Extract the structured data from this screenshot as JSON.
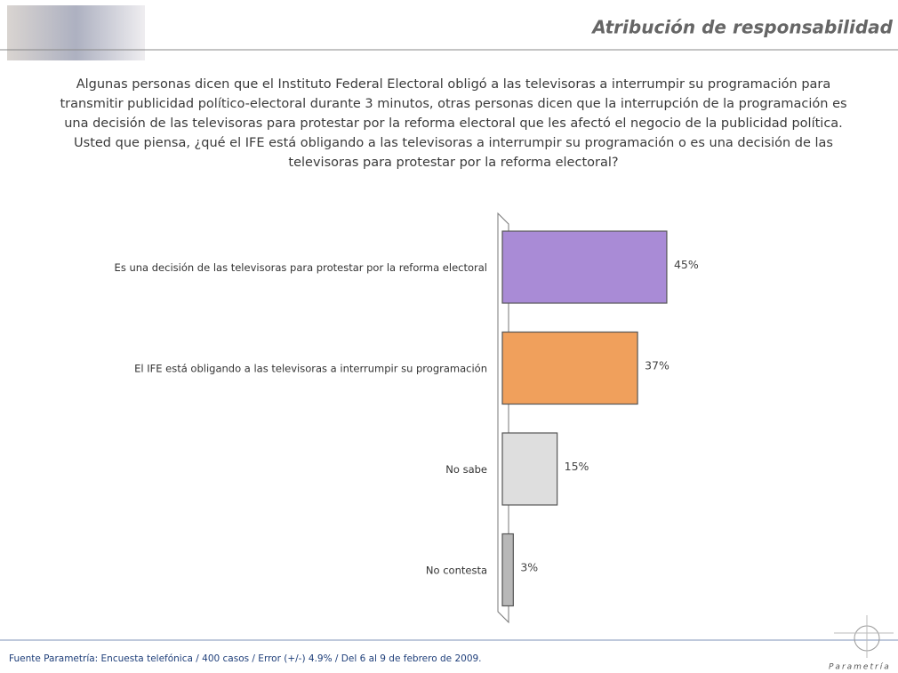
{
  "header": {
    "title": "Atribución de responsabilidad"
  },
  "chart_data": {
    "type": "bar",
    "orientation": "horizontal",
    "title": "Algunas personas dicen que el Instituto Federal Electoral obligó a las televisoras a interrumpir su programación para transmitir publicidad político-electoral durante 3 minutos, otras personas dicen que la interrupción de la programación es una decisión de las televisoras para protestar por la reforma electoral que les afectó el negocio de la publicidad política. Usted que piensa, ¿qué el IFE está obligando a las televisoras a interrumpir su programación o es una decisión de las televisoras para protestar por la reforma electoral?",
    "categories": [
      "Es una decisión de las televisoras para protestar por la reforma electoral",
      "El IFE está obligando a las televisoras a interrumpir su programación",
      "No sabe",
      "No contesta"
    ],
    "values": [
      45,
      37,
      15,
      3
    ],
    "value_labels": [
      "45%",
      "37%",
      "15%",
      "3%"
    ],
    "colors": [
      "#a98bd6",
      "#f0a05c",
      "#dedede",
      "#b8b8b8"
    ]
  },
  "footer": {
    "source": "Fuente Parametría: Encuesta telefónica / 400 casos / Error (+/-) 4.9% / Del 6 al 9 de febrero de 2009.",
    "logo": "Parametría"
  }
}
